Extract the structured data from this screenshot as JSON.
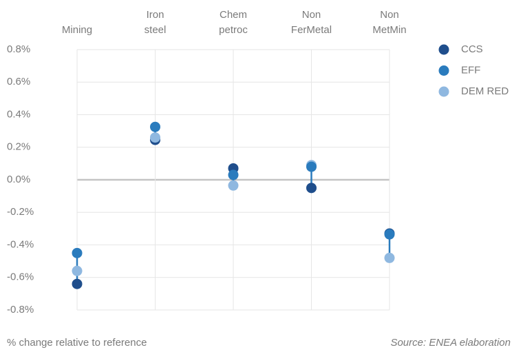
{
  "chart_data": {
    "type": "dot",
    "categories": [
      [
        "Mining"
      ],
      [
        "Iron",
        "steel"
      ],
      [
        "Chem",
        "petroc"
      ],
      [
        "Non",
        "FerMetal"
      ],
      [
        "Non",
        "MetMin"
      ]
    ],
    "series": [
      {
        "name": "CCS",
        "color": "#1f4e8c",
        "values": [
          -0.64,
          0.245,
          0.07,
          -0.05,
          -0.33
        ]
      },
      {
        "name": "EFF",
        "color": "#2a7bbd",
        "values": [
          -0.45,
          0.325,
          0.03,
          0.08,
          -0.335
        ]
      },
      {
        "name": "DEM RED",
        "color": "#8fb8e0",
        "values": [
          -0.56,
          0.26,
          -0.035,
          0.09,
          -0.48
        ]
      }
    ],
    "range_color": "#2a7bbd",
    "ylim": [
      -0.8,
      0.8
    ],
    "yticks": [
      {
        "value": 0.8,
        "label": "0.8%"
      },
      {
        "value": 0.6,
        "label": "0.6%"
      },
      {
        "value": 0.4,
        "label": "0.4%"
      },
      {
        "value": 0.2,
        "label": "0.2%"
      },
      {
        "value": 0,
        "label": "0.0%"
      },
      {
        "value": -0.2,
        "label": "-0.2%"
      },
      {
        "value": -0.4,
        "label": "-0.4%"
      },
      {
        "value": -0.6,
        "label": "-0.6%"
      },
      {
        "value": -0.8,
        "label": "-0.8%"
      }
    ],
    "grid": true,
    "legend": "right",
    "y_label": "% change relative to reference",
    "source": "Source: ENEA elaboration"
  }
}
